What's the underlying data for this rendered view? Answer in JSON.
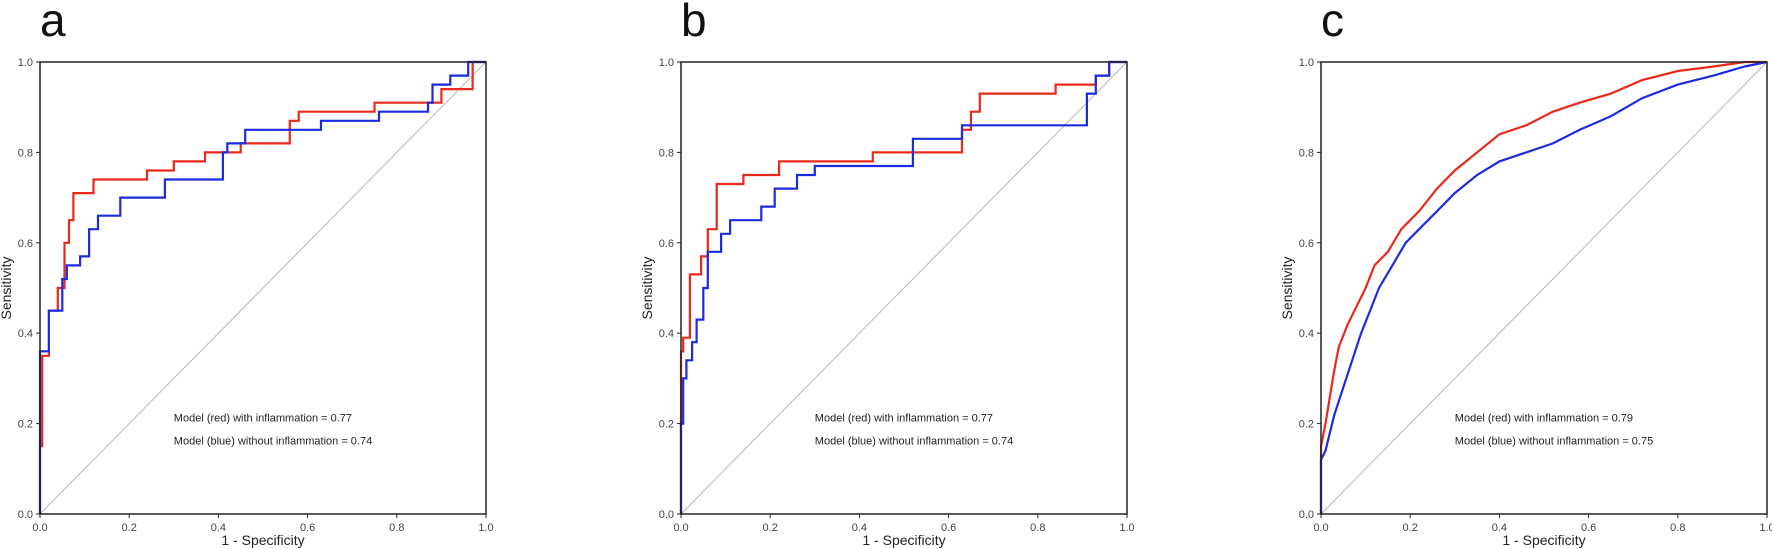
{
  "colors": {
    "with_inflammation": "#e8291c",
    "without_inflammation": "#1c2be0",
    "diagonal": "#b8b8b8",
    "frame": "#222222"
  },
  "chart_data": [
    {
      "panel_label": "a",
      "type": "line",
      "xlabel": "1 - Specificity",
      "ylabel": "Sensitivity",
      "xlim": [
        0,
        1
      ],
      "ylim": [
        0,
        1
      ],
      "xticks": [
        "0.0",
        "0.2",
        "0.4",
        "0.6",
        "0.8",
        "1.0"
      ],
      "yticks": [
        "0.0",
        "0.2",
        "0.4",
        "0.6",
        "0.8",
        "1.0"
      ],
      "diagonal": [
        [
          0,
          0
        ],
        [
          1,
          1
        ]
      ],
      "annotations": [
        "Model (red) with inflammation = 0.77",
        "Model (blue) without inflammation = 0.74"
      ],
      "series": [
        {
          "name": "Model (red) with inflammation",
          "color_key": "with_inflammation",
          "x": [
            0,
            0,
            0.005,
            0.005,
            0.02,
            0.02,
            0.04,
            0.04,
            0.055,
            0.055,
            0.065,
            0.065,
            0.075,
            0.075,
            0.12,
            0.12,
            0.24,
            0.24,
            0.3,
            0.3,
            0.37,
            0.37,
            0.45,
            0.45,
            0.56,
            0.56,
            0.58,
            0.58,
            0.75,
            0.75,
            0.9,
            0.9,
            0.97,
            0.97,
            1.0
          ],
          "y": [
            0,
            0.15,
            0.15,
            0.35,
            0.35,
            0.45,
            0.45,
            0.5,
            0.5,
            0.6,
            0.6,
            0.65,
            0.65,
            0.71,
            0.71,
            0.74,
            0.74,
            0.76,
            0.76,
            0.78,
            0.78,
            0.8,
            0.8,
            0.82,
            0.82,
            0.87,
            0.87,
            0.89,
            0.89,
            0.91,
            0.91,
            0.94,
            0.94,
            1.0,
            1.0
          ]
        },
        {
          "name": "Model (blue) without inflammation",
          "color_key": "without_inflammation",
          "x": [
            0,
            0,
            0.02,
            0.02,
            0.05,
            0.05,
            0.06,
            0.06,
            0.09,
            0.09,
            0.11,
            0.11,
            0.13,
            0.13,
            0.18,
            0.18,
            0.28,
            0.28,
            0.41,
            0.41,
            0.42,
            0.42,
            0.46,
            0.46,
            0.57,
            0.57,
            0.63,
            0.63,
            0.76,
            0.76,
            0.87,
            0.87,
            0.88,
            0.88,
            0.92,
            0.92,
            0.96,
            0.96,
            1.0
          ],
          "y": [
            0,
            0.36,
            0.36,
            0.45,
            0.45,
            0.52,
            0.52,
            0.55,
            0.55,
            0.57,
            0.57,
            0.63,
            0.63,
            0.66,
            0.66,
            0.7,
            0.7,
            0.74,
            0.74,
            0.8,
            0.8,
            0.82,
            0.82,
            0.85,
            0.85,
            0.85,
            0.85,
            0.87,
            0.87,
            0.89,
            0.89,
            0.91,
            0.91,
            0.95,
            0.95,
            0.97,
            0.97,
            1.0,
            1.0
          ]
        }
      ]
    },
    {
      "panel_label": "b",
      "type": "line",
      "xlabel": "1 - Specificity",
      "ylabel": "Sensitivity",
      "xlim": [
        0,
        1
      ],
      "ylim": [
        0,
        1
      ],
      "xticks": [
        "0.0",
        "0.2",
        "0.4",
        "0.6",
        "0.8",
        "1.0"
      ],
      "yticks": [
        "0.0",
        "0.2",
        "0.4",
        "0.6",
        "0.8",
        "1.0"
      ],
      "diagonal": [
        [
          0,
          0
        ],
        [
          1,
          1
        ]
      ],
      "annotations": [
        "Model (red) with inflammation = 0.77",
        "Model (blue) without inflammation = 0.74"
      ],
      "series": [
        {
          "name": "Model (red) with inflammation",
          "color_key": "with_inflammation",
          "x": [
            0,
            0,
            0.005,
            0.005,
            0.02,
            0.02,
            0.045,
            0.045,
            0.06,
            0.06,
            0.08,
            0.08,
            0.14,
            0.14,
            0.22,
            0.22,
            0.43,
            0.43,
            0.63,
            0.63,
            0.65,
            0.65,
            0.67,
            0.67,
            0.84,
            0.84,
            0.93,
            0.93,
            0.96,
            0.96,
            1.0
          ],
          "y": [
            0,
            0.36,
            0.36,
            0.39,
            0.39,
            0.53,
            0.53,
            0.57,
            0.57,
            0.63,
            0.63,
            0.73,
            0.73,
            0.75,
            0.75,
            0.78,
            0.78,
            0.8,
            0.8,
            0.85,
            0.85,
            0.89,
            0.89,
            0.93,
            0.93,
            0.95,
            0.95,
            0.97,
            0.97,
            1.0,
            1.0
          ]
        },
        {
          "name": "Model (blue) without inflammation",
          "color_key": "without_inflammation",
          "x": [
            0,
            0,
            0.005,
            0.005,
            0.012,
            0.012,
            0.025,
            0.025,
            0.035,
            0.035,
            0.05,
            0.05,
            0.06,
            0.06,
            0.09,
            0.09,
            0.11,
            0.11,
            0.18,
            0.18,
            0.21,
            0.21,
            0.26,
            0.26,
            0.3,
            0.3,
            0.52,
            0.52,
            0.63,
            0.63,
            0.91,
            0.91,
            0.93,
            0.93,
            0.96,
            0.96,
            1.0
          ],
          "y": [
            0,
            0.2,
            0.2,
            0.3,
            0.3,
            0.34,
            0.34,
            0.38,
            0.38,
            0.43,
            0.43,
            0.5,
            0.5,
            0.58,
            0.58,
            0.62,
            0.62,
            0.65,
            0.65,
            0.68,
            0.68,
            0.72,
            0.72,
            0.75,
            0.75,
            0.77,
            0.77,
            0.83,
            0.83,
            0.86,
            0.86,
            0.93,
            0.93,
            0.97,
            0.97,
            1.0,
            1.0
          ]
        }
      ]
    },
    {
      "panel_label": "c",
      "type": "line",
      "xlabel": "1 - Specificity",
      "ylabel": "Sensitivity",
      "xlim": [
        0,
        1
      ],
      "ylim": [
        0,
        1
      ],
      "xticks": [
        "0.0",
        "0.2",
        "0.4",
        "0.6",
        "0.8",
        "1.0"
      ],
      "yticks": [
        "0.0",
        "0.2",
        "0.4",
        "0.6",
        "0.8",
        "1.0"
      ],
      "diagonal": [
        [
          0,
          0
        ],
        [
          1,
          1
        ]
      ],
      "annotations": [
        "Model (red) with inflammation = 0.79",
        "Model (blue) without inflammation = 0.75"
      ],
      "series": [
        {
          "name": "Model (red) with inflammation",
          "color_key": "with_inflammation",
          "x": [
            0,
            0,
            0.01,
            0.02,
            0.03,
            0.04,
            0.06,
            0.08,
            0.1,
            0.12,
            0.15,
            0.18,
            0.22,
            0.26,
            0.3,
            0.35,
            0.4,
            0.46,
            0.52,
            0.58,
            0.65,
            0.72,
            0.8,
            0.88,
            0.95,
            1.0
          ],
          "y": [
            0,
            0.15,
            0.2,
            0.26,
            0.32,
            0.37,
            0.42,
            0.46,
            0.5,
            0.55,
            0.58,
            0.63,
            0.67,
            0.72,
            0.76,
            0.8,
            0.84,
            0.86,
            0.89,
            0.91,
            0.93,
            0.96,
            0.98,
            0.99,
            1.0,
            1.0
          ]
        },
        {
          "name": "Model (blue) without inflammation",
          "color_key": "without_inflammation",
          "x": [
            0,
            0,
            0.01,
            0.02,
            0.03,
            0.05,
            0.07,
            0.09,
            0.11,
            0.13,
            0.16,
            0.19,
            0.22,
            0.26,
            0.3,
            0.35,
            0.4,
            0.46,
            0.52,
            0.58,
            0.65,
            0.72,
            0.8,
            0.88,
            0.95,
            1.0
          ],
          "y": [
            0,
            0.12,
            0.14,
            0.18,
            0.22,
            0.28,
            0.34,
            0.4,
            0.45,
            0.5,
            0.55,
            0.6,
            0.63,
            0.67,
            0.71,
            0.75,
            0.78,
            0.8,
            0.82,
            0.85,
            0.88,
            0.92,
            0.95,
            0.97,
            0.99,
            1.0
          ]
        }
      ]
    }
  ]
}
